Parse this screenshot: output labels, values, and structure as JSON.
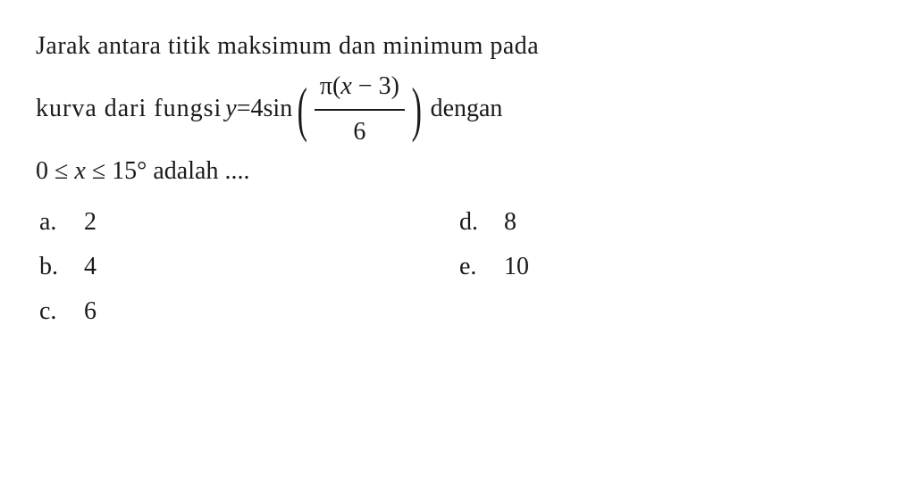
{
  "question": {
    "line1": "Jarak antara titik maksimum dan minimum pada",
    "line2_left": "kurva dari fungsi ",
    "eq_y": "y",
    "eq_equals": " = ",
    "eq_coef": "4",
    "eq_fn": "sin",
    "frac_top_pi": "π",
    "frac_top_paren": "(",
    "frac_top_var": "x",
    "frac_top_minus": " − 3",
    "frac_top_close": ")",
    "frac_bot": "6",
    "line2_right": "dengan",
    "line3_lhs": "0 ≤ ",
    "line3_var": "x",
    "line3_rhs": " ≤ 15° adalah ...."
  },
  "options": {
    "a": {
      "letter": "a.",
      "value": "2"
    },
    "b": {
      "letter": "b.",
      "value": "4"
    },
    "c": {
      "letter": "c.",
      "value": "6"
    },
    "d": {
      "letter": "d.",
      "value": "8"
    },
    "e": {
      "letter": "e.",
      "value": "10"
    }
  },
  "colors": {
    "text": "#1a1a1a",
    "background": "#ffffff"
  },
  "fontsize_body": 28
}
